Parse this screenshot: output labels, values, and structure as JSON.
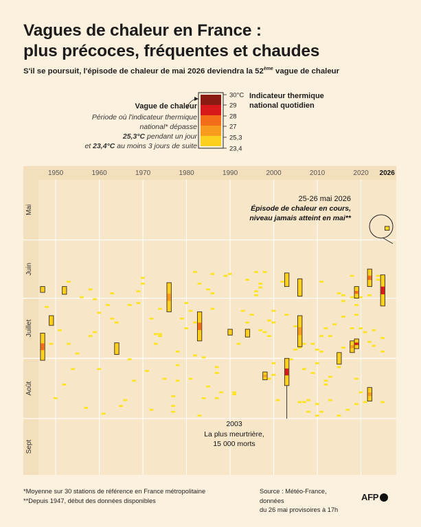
{
  "header": {
    "title_line1": "Vagues de chaleur en France :",
    "title_line2": "plus précoces, fréquentes et chaudes",
    "subtitle_pre": "S'il se poursuit, l'épisode de chaleur de mai 2026 deviendra la 52",
    "subtitle_sup": "ème",
    "subtitle_post": " vague de chaleur"
  },
  "legend": {
    "heading": "Vague de chaleur",
    "desc_line1": "Période où l'indicateur thermique",
    "desc_line2": "national* dépasse",
    "desc_val1": "25,3°C",
    "desc_line3": " pendant un jour",
    "desc_line4": "et ",
    "desc_val2": "23,4°C",
    "desc_line5": " au moins 3 jours de suite",
    "indicator_line1": "Indicateur thermique",
    "indicator_line2": "national quotidien",
    "scale_labels": [
      "30°C",
      "29",
      "28",
      "27",
      "25,3",
      "23,4"
    ],
    "scale_colors": [
      "#8b1a10",
      "#d7191c",
      "#f26c1a",
      "#f79a1e",
      "#fcd01c",
      "#fce323"
    ]
  },
  "annotations": {
    "may2026_title": "25-26 mai 2026",
    "may2026_line1": "Épisode de chaleur en cours,",
    "may2026_line2": "niveau jamais atteint en mai**",
    "y2003_year": "2003",
    "y2003_line1": "La plus meurtrière,",
    "y2003_line2": "15 000 morts"
  },
  "footer": {
    "note1": "*Moyenne sur 30 stations de référence en France métropolitaine",
    "note2": "**Depuis 1947, début des données disponibles",
    "source_line1": "Source : Météo-France, données",
    "source_line2": "du 26 mai provisoires à 17h",
    "brand": "AFP"
  },
  "colors": {
    "background": "#fcf1de",
    "panel": "#f7e6c8",
    "grid": "#ffffff",
    "level_2334": "#fce323",
    "level_253": "#fcd01c",
    "level_27": "#f79a1e",
    "level_28": "#f26c1a",
    "level_29": "#d7191c",
    "level_30": "#8b1a10"
  },
  "chart_data": {
    "type": "heatmap",
    "title": "Vagues de chaleur en France : plus précoces, fréquentes et chaudes",
    "x_label": "",
    "y_label": "",
    "x_range": [
      1944,
      2027
    ],
    "x_ticks": [
      1950,
      1960,
      1970,
      1980,
      1990,
      2000,
      2010,
      2020,
      2026
    ],
    "y_axis": "jour de l'année, 1er mai (haut) à fin septembre (bas)",
    "y_month_labels": [
      "Mai",
      "Juin",
      "Juillet",
      "Août",
      "Sept"
    ],
    "y_month_start_days": [
      121,
      152,
      182,
      213,
      244
    ],
    "y_range_days": [
      121,
      273
    ],
    "value": "indicateur thermique national quotidien (°C), jours ≥ 23,4",
    "color_thresholds": [
      23.4,
      25.3,
      27,
      28,
      29,
      30
    ],
    "heatwaves": [
      {
        "year": 1947,
        "start_day": 200,
        "end_day": 213,
        "peak": 28.5
      },
      {
        "year": 1947,
        "start_day": 176,
        "end_day": 178,
        "peak": 25.3
      },
      {
        "year": 1949,
        "start_day": 191,
        "end_day": 195,
        "peak": 26
      },
      {
        "year": 1952,
        "start_day": 176,
        "end_day": 179,
        "peak": 26
      },
      {
        "year": 1964,
        "start_day": 205,
        "end_day": 210,
        "peak": 26
      },
      {
        "year": 1976,
        "start_day": 174,
        "end_day": 188,
        "peak": 27.5
      },
      {
        "year": 1983,
        "start_day": 189,
        "end_day": 203,
        "peak": 28
      },
      {
        "year": 1990,
        "start_day": 198,
        "end_day": 200,
        "peak": 25.3
      },
      {
        "year": 1994,
        "start_day": 198,
        "end_day": 201,
        "peak": 26
      },
      {
        "year": 1998,
        "start_day": 220,
        "end_day": 223,
        "peak": 27
      },
      {
        "year": 2003,
        "start_day": 213,
        "end_day": 226,
        "peak": 29.4
      },
      {
        "year": 2003,
        "start_day": 169,
        "end_day": 175,
        "peak": 25.6
      },
      {
        "year": 2006,
        "start_day": 172,
        "end_day": 180,
        "peak": 26
      },
      {
        "year": 2006,
        "start_day": 191,
        "end_day": 206,
        "peak": 27
      },
      {
        "year": 2015,
        "start_day": 210,
        "end_day": 215,
        "peak": 26
      },
      {
        "year": 2018,
        "start_day": 204,
        "end_day": 209,
        "peak": 27
      },
      {
        "year": 2019,
        "start_day": 176,
        "end_day": 181,
        "peak": 28.3
      },
      {
        "year": 2019,
        "start_day": 203,
        "end_day": 207,
        "peak": 29.3
      },
      {
        "year": 2022,
        "start_day": 228,
        "end_day": 234,
        "peak": 27
      },
      {
        "year": 2022,
        "start_day": 167,
        "end_day": 175,
        "peak": 28
      },
      {
        "year": 2025,
        "start_day": 170,
        "end_day": 185,
        "peak": 29.5
      },
      {
        "year": 2026,
        "start_day": 145,
        "end_day": 146,
        "peak": 25
      }
    ]
  }
}
